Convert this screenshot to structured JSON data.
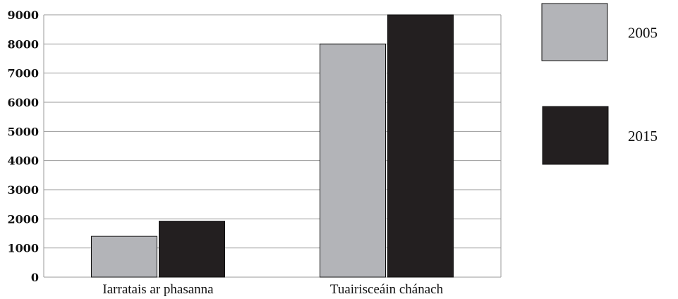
{
  "chart_data": {
    "type": "bar",
    "categories": [
      "Iarratais ar phasanna",
      "Tuairisceáin chánach"
    ],
    "series": [
      {
        "name": "2005",
        "values": [
          1400,
          8000
        ],
        "color": "#b3b4b8"
      },
      {
        "name": "2015",
        "values": [
          1920,
          9000
        ],
        "color": "#231f20"
      }
    ],
    "yticks": [
      0,
      1000,
      2000,
      3000,
      4000,
      5000,
      6000,
      7000,
      8000,
      9000
    ],
    "ylim": [
      0,
      9000
    ],
    "grid": true,
    "legend_position": "right"
  }
}
